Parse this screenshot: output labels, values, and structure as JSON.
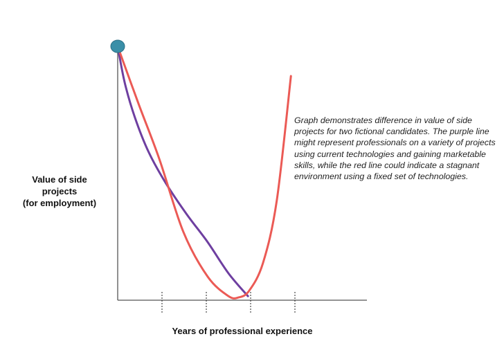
{
  "chart_data": {
    "type": "line",
    "title": "",
    "xlabel": "Years of professional experience",
    "ylabel": "Value of side projects (for employment)",
    "ylabel_lines": [
      "Value of side",
      "projects",
      "(for employment)"
    ],
    "xlim": [
      0,
      5.6
    ],
    "ylim": [
      0,
      10
    ],
    "x_ticks": [
      1,
      2,
      3,
      4
    ],
    "x_tick_style": "dotted",
    "grid": false,
    "start_point": {
      "x": 0,
      "y": 10,
      "color": "#3a8fa8"
    },
    "series": [
      {
        "color": "#6e3fa0",
        "points": [
          [
            0,
            10
          ],
          [
            0.16,
            8.56
          ],
          [
            0.39,
            7.19
          ],
          [
            0.7,
            5.83
          ],
          [
            1.09,
            4.6
          ],
          [
            1.56,
            3.38
          ],
          [
            2.03,
            2.29
          ],
          [
            2.5,
            1.06
          ],
          [
            2.94,
            0.16
          ]
        ]
      },
      {
        "color": "#eb5a55",
        "points": [
          [
            0,
            10
          ],
          [
            0.47,
            7.74
          ],
          [
            0.94,
            5.56
          ],
          [
            1.48,
            2.7
          ],
          [
            2.03,
            0.93
          ],
          [
            2.5,
            0.16
          ],
          [
            2.73,
            0.11
          ],
          [
            2.97,
            0.38
          ],
          [
            3.28,
            1.47
          ],
          [
            3.59,
            3.92
          ],
          [
            3.91,
            8.83
          ]
        ]
      }
    ],
    "annotation": "Graph demonstrates difference in value of side projects for two fictional candidates. The purple line might represent professionals on a variety of projects using current technologies and gaining marketable skills, while the red line could indicate a stagnant environment using a fixed set of technologies."
  }
}
